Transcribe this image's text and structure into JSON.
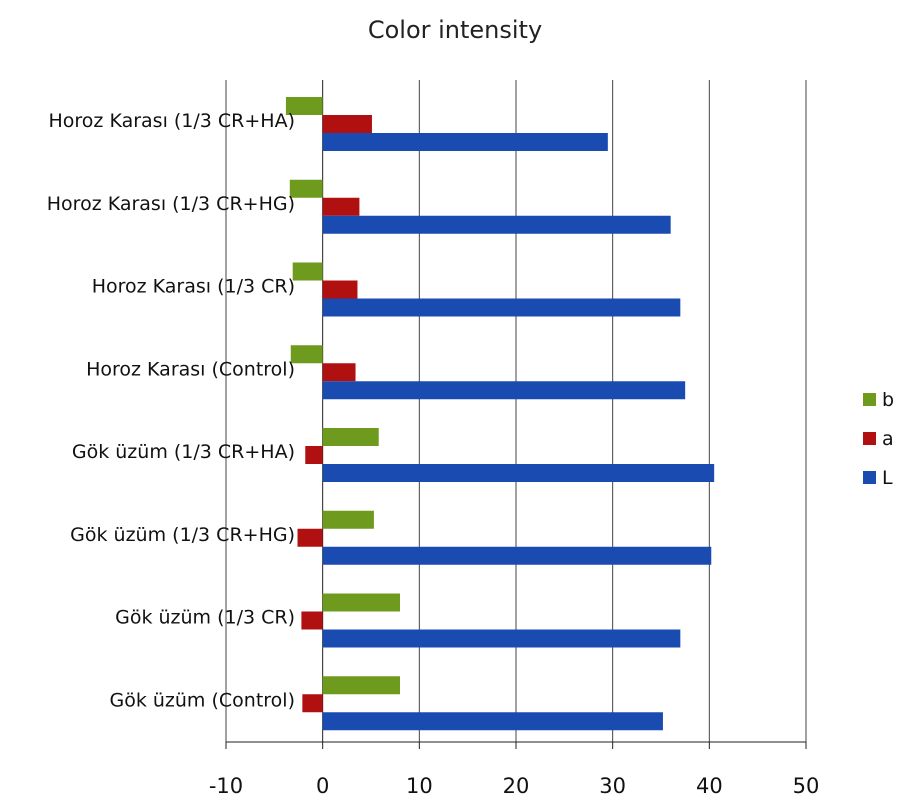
{
  "chart_data": {
    "type": "bar",
    "orientation": "horizontal",
    "title": "Color intensity",
    "xlabel": "",
    "ylabel": "",
    "xlim": [
      -10,
      50
    ],
    "xticks": [
      -10,
      0,
      10,
      20,
      30,
      40,
      50
    ],
    "grid": true,
    "legend_position": "right",
    "categories": [
      "Horoz Karası (1/3 CR+HA)",
      "Horoz Karası (1/3 CR+HG)",
      "Horoz Karası (1/3 CR)",
      "Horoz Karası (Control)",
      "Gök üzüm (1/3 CR+HA)",
      "Gök üzüm (1/3 CR+HG)",
      "Gök üzüm (1/3 CR)",
      "Gök üzüm (Control)"
    ],
    "series": [
      {
        "name": "b",
        "color": "#6e9a1e",
        "values": [
          -3.8,
          -3.4,
          -3.1,
          -3.3,
          5.8,
          5.3,
          8.0,
          8.0
        ]
      },
      {
        "name": "a",
        "color": "#b01010",
        "values": [
          5.1,
          3.8,
          3.6,
          3.4,
          -1.8,
          -2.6,
          -2.2,
          -2.1
        ]
      },
      {
        "name": "L",
        "color": "#1a4bb0",
        "values": [
          29.5,
          36.0,
          37.0,
          37.5,
          40.5,
          40.2,
          37.0,
          35.2
        ]
      }
    ],
    "legend_order": [
      "b",
      "a",
      "L"
    ]
  }
}
